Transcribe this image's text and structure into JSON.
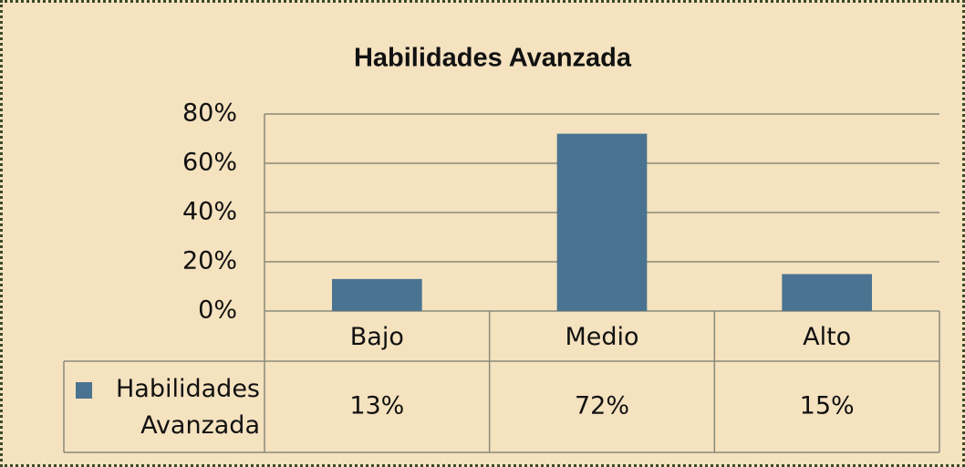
{
  "chart_data": {
    "type": "bar",
    "title": "Habilidades  Avanzada",
    "categories": [
      "Bajo",
      "Medio",
      "Alto"
    ],
    "series": [
      {
        "name": "Habilidades Avanzada",
        "color": "#4a7391",
        "values": [
          13,
          72,
          15
        ],
        "value_labels": [
          "13%",
          "72%",
          "15%"
        ]
      }
    ],
    "ylim": [
      0,
      80
    ],
    "yticks": [
      {
        "value": 0,
        "label": "0%"
      },
      {
        "value": 20,
        "label": "20%"
      },
      {
        "value": 40,
        "label": "40%"
      },
      {
        "value": 60,
        "label": "60%"
      },
      {
        "value": 80,
        "label": "80%"
      }
    ],
    "grid": true
  }
}
